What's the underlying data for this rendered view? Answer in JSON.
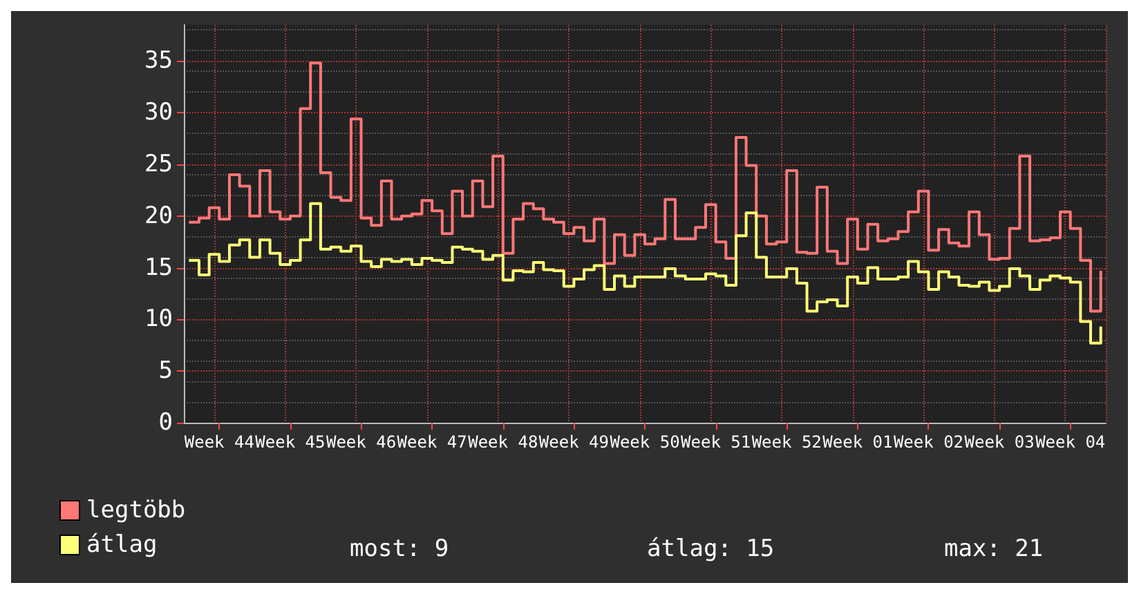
{
  "chart_data": {
    "type": "step",
    "line_style": "solid",
    "marker": "none",
    "grid": true,
    "legend": "bottom left",
    "ylim": [
      0,
      38.5
    ],
    "yticks": [
      0,
      5,
      10,
      15,
      20,
      25,
      30,
      35
    ],
    "categories": [
      null,
      null,
      null,
      "Week 44",
      null,
      null,
      null,
      null,
      null,
      null,
      "Week 45",
      null,
      null,
      null,
      null,
      null,
      null,
      "Week 46",
      null,
      null,
      null,
      null,
      null,
      null,
      "Week 47",
      null,
      null,
      null,
      null,
      null,
      null,
      "Week 48",
      null,
      null,
      null,
      null,
      null,
      null,
      "Week 49",
      null,
      null,
      null,
      null,
      null,
      null,
      "Week 50",
      null,
      null,
      null,
      null,
      null,
      null,
      "Week 51",
      null,
      null,
      null,
      null,
      null,
      null,
      "Week 52",
      null,
      null,
      null,
      null,
      null,
      null,
      "Week 01",
      null,
      null,
      null,
      null,
      null,
      null,
      "Week 02",
      null,
      null,
      null,
      null,
      null,
      null,
      "Week 03",
      null,
      null,
      null,
      null,
      null,
      null,
      "Week 04",
      null,
      null,
      null
    ],
    "series": [
      {
        "name": "legtöbb",
        "color": "#ff7777",
        "values": [
          19.4,
          19.8,
          20.8,
          19.7,
          24.0,
          22.9,
          20.0,
          24.4,
          20.4,
          19.7,
          20.0,
          30.4,
          34.8,
          24.2,
          21.8,
          21.5,
          29.4,
          19.8,
          19.1,
          23.4,
          19.7,
          20.0,
          20.2,
          21.5,
          20.5,
          18.3,
          22.4,
          20.0,
          23.4,
          20.9,
          25.8,
          16.4,
          19.7,
          21.2,
          20.7,
          19.7,
          19.4,
          18.3,
          18.9,
          17.6,
          19.7,
          15.4,
          18.2,
          16.2,
          18.2,
          17.3,
          17.8,
          21.6,
          17.8,
          17.8,
          18.9,
          21.1,
          17.5,
          15.9,
          27.6,
          24.9,
          20.0,
          17.3,
          17.5,
          24.4,
          16.5,
          16.4,
          22.8,
          16.6,
          15.4,
          19.7,
          16.8,
          19.2,
          17.6,
          17.8,
          18.5,
          20.4,
          22.4,
          16.7,
          18.7,
          17.4,
          17.1,
          20.4,
          18.2,
          15.8,
          15.9,
          18.8,
          25.8,
          17.6,
          17.7,
          17.9,
          20.4,
          18.8,
          15.7,
          10.8,
          14.7
        ]
      },
      {
        "name": "átlag",
        "color": "#ffff77",
        "values": [
          15.7,
          14.3,
          16.3,
          15.6,
          17.2,
          17.7,
          16.0,
          17.7,
          16.4,
          15.3,
          15.7,
          17.7,
          21.2,
          16.8,
          17.0,
          16.6,
          17.1,
          15.6,
          15.1,
          15.8,
          15.6,
          15.8,
          15.3,
          15.9,
          15.7,
          15.5,
          17.0,
          16.8,
          16.6,
          15.8,
          16.2,
          13.8,
          14.7,
          14.6,
          15.5,
          14.8,
          14.7,
          13.2,
          13.9,
          14.8,
          15.2,
          12.9,
          14.2,
          13.2,
          14.1,
          14.1,
          14.1,
          14.9,
          14.2,
          13.9,
          13.9,
          14.4,
          14.2,
          13.3,
          18.1,
          20.3,
          16.0,
          14.1,
          14.1,
          14.9,
          13.5,
          10.8,
          11.7,
          11.9,
          11.3,
          14.1,
          13.5,
          15.0,
          13.9,
          13.9,
          14.1,
          15.6,
          14.6,
          12.9,
          14.6,
          14.1,
          13.3,
          13.2,
          13.6,
          12.8,
          13.2,
          14.9,
          14.2,
          12.9,
          13.8,
          14.2,
          14.0,
          13.6,
          9.8,
          7.7,
          9.3
        ]
      }
    ],
    "annotations": [
      "most: 9",
      "átlag: 15",
      "max: 21"
    ]
  }
}
